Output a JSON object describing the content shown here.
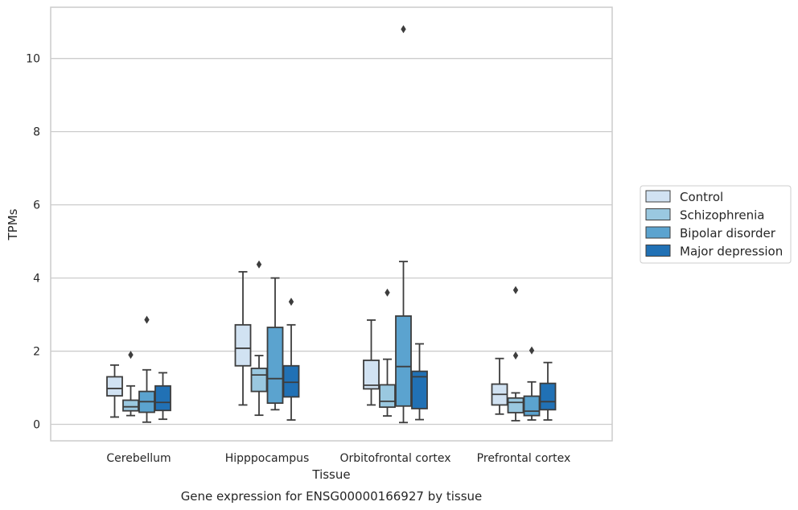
{
  "chart_data": {
    "type": "box",
    "title": "",
    "xlabel": "Tissue",
    "ylabel": "TPMs",
    "caption": "Gene expression for ENSG00000166927 by tissue",
    "ylim": [
      -0.45,
      11.4
    ],
    "yticks": [
      0,
      2,
      4,
      6,
      8,
      10
    ],
    "ytick_labels": [
      "0",
      "2",
      "4",
      "6",
      "8",
      "10"
    ],
    "grid": "horizontal",
    "legend_position": "right",
    "categories": [
      "Cerebellum",
      "Hipppocampus",
      "Orbitofrontal cortex",
      "Prefrontal cortex"
    ],
    "series": [
      {
        "name": "Control",
        "color": "#d1e2f2",
        "boxes": [
          {
            "whislo": 0.2,
            "q1": 0.78,
            "med": 0.98,
            "q3": 1.3,
            "whishi": 1.62,
            "fliers": []
          },
          {
            "whislo": 0.53,
            "q1": 1.6,
            "med": 2.08,
            "q3": 2.72,
            "whishi": 4.17,
            "fliers": []
          },
          {
            "whislo": 0.53,
            "q1": 0.97,
            "med": 1.07,
            "q3": 1.75,
            "whishi": 2.85,
            "fliers": []
          },
          {
            "whislo": 0.28,
            "q1": 0.53,
            "med": 0.82,
            "q3": 1.1,
            "whishi": 1.8,
            "fliers": []
          }
        ]
      },
      {
        "name": "Schizophrenia",
        "color": "#9ac8e0",
        "boxes": [
          {
            "whislo": 0.24,
            "q1": 0.37,
            "med": 0.48,
            "q3": 0.66,
            "whishi": 1.05,
            "fliers": [
              1.9
            ]
          },
          {
            "whislo": 0.25,
            "q1": 0.9,
            "med": 1.35,
            "q3": 1.53,
            "whishi": 1.88,
            "fliers": [
              4.37
            ]
          },
          {
            "whislo": 0.23,
            "q1": 0.47,
            "med": 0.63,
            "q3": 1.08,
            "whishi": 1.78,
            "fliers": [
              3.6
            ]
          },
          {
            "whislo": 0.1,
            "q1": 0.32,
            "med": 0.6,
            "q3": 0.72,
            "whishi": 0.86,
            "fliers": [
              1.88,
              3.67
            ]
          }
        ]
      },
      {
        "name": "Bipolar disorder",
        "color": "#5ba3cf",
        "boxes": [
          {
            "whislo": 0.06,
            "q1": 0.33,
            "med": 0.62,
            "q3": 0.9,
            "whishi": 1.49,
            "fliers": [
              2.86
            ]
          },
          {
            "whislo": 0.4,
            "q1": 0.58,
            "med": 1.25,
            "q3": 2.65,
            "whishi": 4.0,
            "fliers": []
          },
          {
            "whislo": 0.05,
            "q1": 0.5,
            "med": 1.58,
            "q3": 2.96,
            "whishi": 4.45,
            "fliers": [
              10.8
            ]
          },
          {
            "whislo": 0.12,
            "q1": 0.24,
            "med": 0.36,
            "q3": 0.77,
            "whishi": 1.16,
            "fliers": [
              2.02
            ]
          }
        ]
      },
      {
        "name": "Major depression",
        "color": "#2171b5",
        "boxes": [
          {
            "whislo": 0.14,
            "q1": 0.38,
            "med": 0.6,
            "q3": 1.05,
            "whishi": 1.41,
            "fliers": []
          },
          {
            "whislo": 0.12,
            "q1": 0.75,
            "med": 1.15,
            "q3": 1.6,
            "whishi": 2.72,
            "fliers": [
              3.35
            ]
          },
          {
            "whislo": 0.13,
            "q1": 0.43,
            "med": 1.3,
            "q3": 1.45,
            "whishi": 2.2,
            "fliers": []
          },
          {
            "whislo": 0.12,
            "q1": 0.4,
            "med": 0.62,
            "q3": 1.12,
            "whishi": 1.69,
            "fliers": []
          }
        ]
      }
    ]
  }
}
